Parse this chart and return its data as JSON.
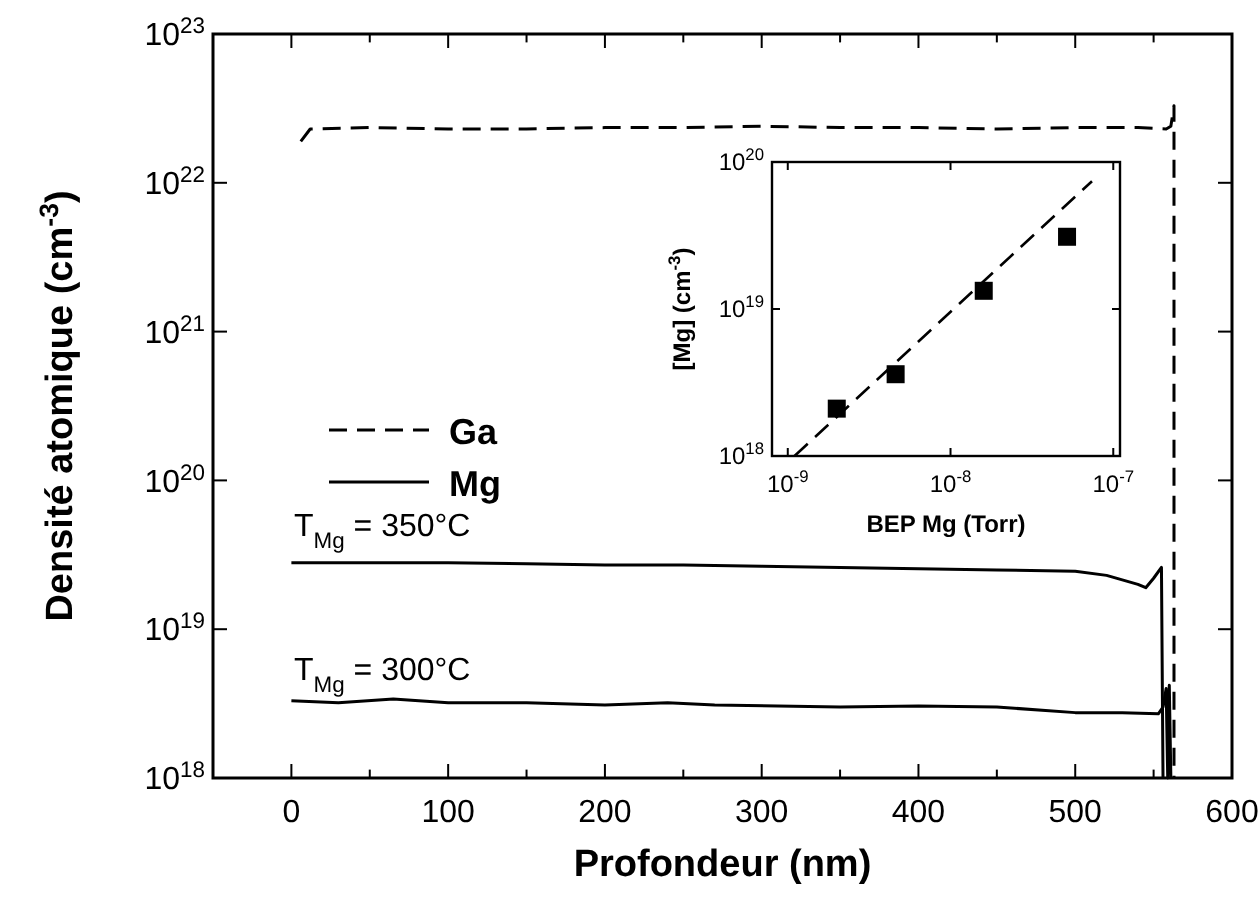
{
  "chart_data": [
    {
      "type": "line",
      "xlabel": "Profondeur (nm)",
      "ylabel": "Densité atomique (cm$^{-3}$)",
      "log": "y",
      "xlim": [
        -50,
        600
      ],
      "ylim": [
        1e+18,
        1e+23
      ],
      "xticks": [
        0,
        100,
        200,
        300,
        400,
        500,
        600,
        {
          "value": 50,
          "label": null
        },
        {
          "value": 150,
          "label": null
        },
        {
          "value": 250,
          "label": null
        },
        {
          "value": 350,
          "label": null
        },
        {
          "value": 450,
          "label": null
        },
        {
          "value": 550,
          "label": null
        }
      ],
      "yticks": [
        {
          "value": 1e+18,
          "label": "10$^{18}$"
        },
        {
          "value": 1e+19,
          "label": "10$^{19}$"
        },
        {
          "value": 1e+20,
          "label": "10$^{20}$"
        },
        {
          "value": 1e+21,
          "label": "10$^{21}$"
        },
        {
          "value": 1e+22,
          "label": "10$^{22}$"
        },
        {
          "value": 1e+23,
          "label": "10$^{23}$"
        }
      ],
      "legend": "left",
      "grid": false,
      "annotations": [
        "T$_{Mg}$ = 350°C",
        "T$_{Mg}$ = 300°C"
      ],
      "series": [
        {
          "name": "Ga",
          "color": "#000000",
          "line_style": "dashed",
          "x": [
            6,
            12,
            50,
            100,
            150,
            200,
            250,
            300,
            350,
            400,
            450,
            500,
            540,
            558,
            561,
            563,
            563
          ],
          "values": [
            1.9e+22,
            2.3e+22,
            2.35e+22,
            2.3e+22,
            2.3e+22,
            2.35e+22,
            2.35e+22,
            2.4e+22,
            2.35e+22,
            2.35e+22,
            2.3e+22,
            2.35e+22,
            2.35e+22,
            2.3e+22,
            2.4e+22,
            3.3e+22,
            1e+18
          ]
        },
        {
          "name": "Mg",
          "color": "#000000",
          "line_style": "solid",
          "x": [
            0,
            50,
            100,
            150,
            200,
            250,
            300,
            350,
            400,
            450,
            500,
            520,
            540,
            545,
            550,
            555,
            556
          ],
          "values": [
            2.8e+19,
            2.8e+19,
            2.8e+19,
            2.75e+19,
            2.7e+19,
            2.7e+19,
            2.65e+19,
            2.6e+19,
            2.55e+19,
            2.5e+19,
            2.45e+19,
            2.3e+19,
            2e+19,
            1.9e+19,
            2.2e+19,
            2.6e+19,
            1e+18
          ]
        },
        {
          "color": "#000000",
          "line_style": "solid",
          "x": [
            0,
            30,
            65,
            100,
            150,
            200,
            240,
            270,
            350,
            400,
            450,
            500,
            530,
            553,
            556,
            558,
            559,
            560,
            561
          ],
          "values": [
            3.3e+18,
            3.2e+18,
            3.4e+18,
            3.2e+18,
            3.2e+18,
            3.1e+18,
            3.2e+18,
            3.1e+18,
            3e+18,
            3.05e+18,
            3e+18,
            2.75e+18,
            2.75e+18,
            2.7e+18,
            3e+18,
            4e+18,
            1e+18,
            4.2e+18,
            1e+18
          ]
        }
      ]
    },
    {
      "type": "scatter",
      "xlabel": "BEP Mg (Torr)",
      "ylabel": "[Mg]  (cm$^{-3}$)",
      "log": "xy",
      "xlim": [
        8e-10,
        1.1e-07
      ],
      "ylim": [
        1e+18,
        1e+20
      ],
      "xticks": [
        {
          "value": 1e-09,
          "label": "10$^{-9}$"
        },
        {
          "value": 1e-08,
          "label": "10$^{-8}$"
        },
        {
          "value": 1e-07,
          "label": "10$^{-7}$"
        }
      ],
      "yticks": [
        {
          "value": 1e+18,
          "label": "10$^{18}$"
        },
        {
          "value": 1e+19,
          "label": "10$^{19}$"
        },
        {
          "value": 1e+20,
          "label": "10$^{20}$"
        }
      ],
      "marker": "square",
      "grid": false,
      "series": [
        {
          "color": "#000000",
          "x": [
            2e-09,
            4.6e-09,
            1.6e-08,
            5.2e-08
          ],
          "values": [
            2.1e+18,
            3.6e+18,
            1.33e+19,
            3.1e+19
          ]
        },
        {
          "type": "line",
          "marker": "none",
          "color": "#000000",
          "line_style": "dashed",
          "x": [
            1.1e-09,
            7.4e-08
          ],
          "values": [
            1e+18,
            7.4e+19
          ]
        }
      ]
    }
  ]
}
